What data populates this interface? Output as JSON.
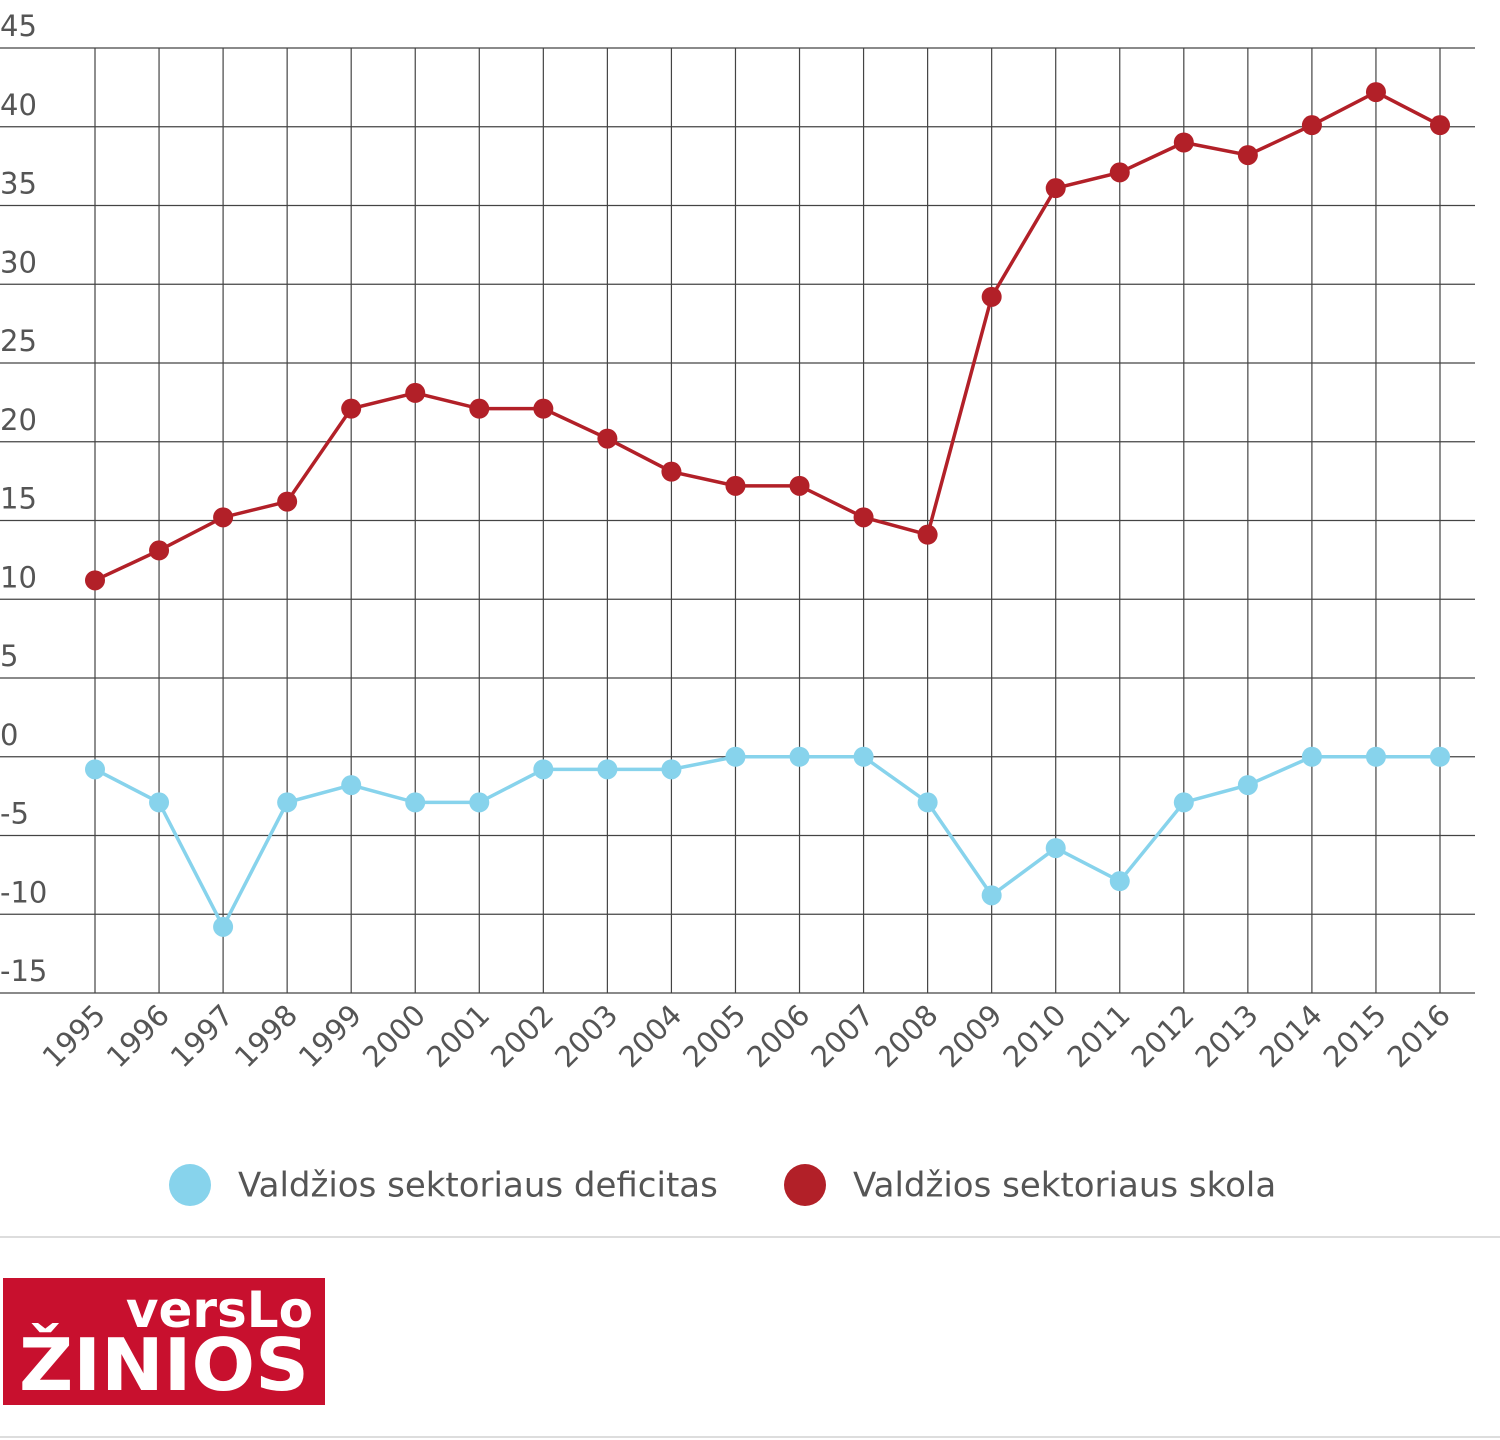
{
  "chart_data": {
    "type": "line",
    "categories": [
      "1995",
      "1996",
      "1997",
      "1998",
      "1999",
      "2000",
      "2001",
      "2002",
      "2003",
      "2004",
      "2005",
      "2006",
      "2007",
      "2008",
      "2009",
      "2010",
      "2011",
      "2012",
      "2013",
      "2014",
      "2015",
      "2016"
    ],
    "series": [
      {
        "name": "Valdžios sektoriaus deficitas",
        "color": "#87d3ec",
        "values": [
          -0.8,
          -2.9,
          -10.8,
          -2.9,
          -1.8,
          -2.9,
          -2.9,
          -0.8,
          -0.8,
          -0.8,
          0,
          0,
          0,
          -2.9,
          -8.8,
          -5.8,
          -7.9,
          -2.9,
          -1.8,
          0,
          0,
          0
        ]
      },
      {
        "name": "Valdžios sektoriaus skola",
        "color": "#b22028",
        "values": [
          11.2,
          13.1,
          15.2,
          16.2,
          22.1,
          23.1,
          22.1,
          22.1,
          20.2,
          18.1,
          17.2,
          17.2,
          15.2,
          14.1,
          29.2,
          36.1,
          37.1,
          39.0,
          38.2,
          40.1,
          42.2,
          40.1
        ]
      }
    ],
    "ylim": [
      -15,
      45
    ],
    "yticks": [
      -15,
      -10,
      -5,
      0,
      5,
      10,
      15,
      20,
      25,
      30,
      35,
      40,
      45
    ],
    "grid": true,
    "legend": "bottom"
  },
  "logo": {
    "top": "versLo",
    "bottom": "ŽINIOS"
  }
}
